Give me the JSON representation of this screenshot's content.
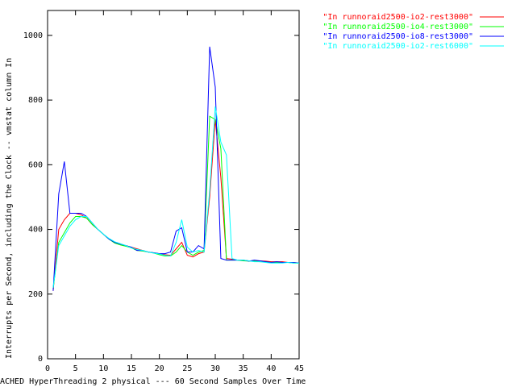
{
  "chart_data": {
    "type": "line",
    "x_label": "ACHED HyperThreading 2 physical --- 60 Second Samples Over Time",
    "y_label": "Interrupts per Second, including the Clock -- vmstat column In",
    "x": [
      1,
      2,
      3,
      4,
      5,
      6,
      7,
      8,
      9,
      10,
      11,
      12,
      13,
      14,
      15,
      16,
      17,
      18,
      19,
      20,
      21,
      22,
      23,
      24,
      25,
      26,
      27,
      28,
      29,
      30,
      31,
      32,
      33,
      34,
      35,
      36,
      37,
      38,
      39,
      40,
      41,
      42,
      43,
      44,
      45
    ],
    "series": [
      {
        "name": "\"In runnoraid2500-io2-rest3000\"",
        "color": "#ff0000",
        "values": [
          210,
          400,
          430,
          450,
          450,
          445,
          435,
          415,
          400,
          385,
          370,
          360,
          355,
          350,
          345,
          340,
          335,
          330,
          328,
          325,
          322,
          320,
          340,
          360,
          320,
          315,
          325,
          330,
          500,
          740,
          560,
          310,
          308,
          305,
          305,
          303,
          302,
          303,
          302,
          300,
          300,
          300,
          298,
          298,
          296
        ]
      },
      {
        "name": "\"In runnoraid2500-io4-rest3000\"",
        "color": "#00ff00",
        "values": [
          215,
          360,
          390,
          420,
          440,
          440,
          435,
          415,
          400,
          385,
          370,
          358,
          352,
          348,
          343,
          335,
          333,
          330,
          327,
          322,
          318,
          318,
          330,
          350,
          330,
          320,
          330,
          335,
          750,
          740,
          650,
          305,
          305,
          305,
          303,
          302,
          302,
          300,
          300,
          298,
          298,
          298,
          298,
          296,
          296
        ]
      },
      {
        "name": "\"In runnoraid2500-io8-rest3000\"",
        "color": "#0000ff",
        "values": [
          210,
          510,
          610,
          450,
          450,
          450,
          440,
          420,
          400,
          385,
          370,
          360,
          355,
          350,
          345,
          335,
          335,
          330,
          328,
          325,
          325,
          330,
          395,
          405,
          330,
          330,
          350,
          340,
          965,
          840,
          310,
          305,
          305,
          305,
          305,
          302,
          305,
          303,
          300,
          298,
          300,
          298,
          298,
          298,
          296
        ]
      },
      {
        "name": "\"In runnoraid2500-io2-rest6000\"",
        "color": "#00ffff",
        "values": [
          220,
          350,
          380,
          410,
          430,
          440,
          440,
          420,
          400,
          385,
          372,
          362,
          356,
          350,
          343,
          338,
          335,
          330,
          327,
          324,
          320,
          318,
          360,
          430,
          345,
          330,
          335,
          330,
          520,
          780,
          670,
          630,
          310,
          305,
          305,
          303,
          300,
          300,
          298,
          296,
          296,
          296,
          298,
          296,
          296
        ]
      }
    ],
    "xlim": [
      0,
      45
    ],
    "ylim": [
      0,
      1077
    ],
    "xticks": [
      0,
      5,
      10,
      15,
      20,
      25,
      30,
      35,
      40,
      45
    ],
    "yticks": [
      0,
      200,
      400,
      600,
      800,
      1000
    ],
    "legend": "outside-top-right"
  }
}
